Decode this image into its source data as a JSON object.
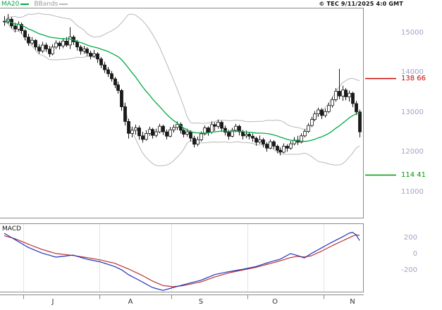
{
  "legend": {
    "ma20": "MA20",
    "bbands": "BBands"
  },
  "copyright": "© TEC 9/11/2025 4:0 GMT",
  "colors": {
    "ma20": "#00aa44",
    "bbands": "#b8b8b8",
    "bbands_text": "#9a9a9a",
    "candle": "#1a1a1a",
    "macd_line": "#2233bb",
    "macd_signal": "#bb3333",
    "axis_text": "#9fa3c8",
    "frame": "#8a8a8a"
  },
  "chart_data": {
    "type": "candlestick",
    "title": "",
    "x_axis": {
      "month_labels": [
        "J",
        "A",
        "S",
        "O",
        "N"
      ],
      "month_start_indices": [
        6,
        28,
        49,
        71,
        93
      ]
    },
    "price_axis": {
      "tick_values": [
        15000,
        14000,
        13000,
        12000,
        11000
      ],
      "visible_range_approx": [
        10400,
        15600
      ]
    },
    "overlays": [
      {
        "name": "MA20",
        "type": "sma",
        "period": 20,
        "source": "close"
      },
      {
        "name": "BBands",
        "type": "bollinger",
        "period": 20,
        "stddev": 2
      }
    ],
    "levels": [
      {
        "label": "138 66",
        "value": 13866,
        "role": "resistance",
        "color": "#cc0000"
      },
      {
        "label": "114 41",
        "value": 11441,
        "role": "support",
        "color": "#009900"
      }
    ],
    "candles_ohlc": [
      [
        15300,
        15430,
        15180,
        15280
      ],
      [
        15280,
        15480,
        15230,
        15350
      ],
      [
        15350,
        15400,
        15120,
        15180
      ],
      [
        15180,
        15260,
        15020,
        15100
      ],
      [
        15100,
        15300,
        15050,
        15220
      ],
      [
        15220,
        15270,
        14980,
        15060
      ],
      [
        15060,
        15100,
        14820,
        14900
      ],
      [
        14900,
        14980,
        14680,
        14750
      ],
      [
        14750,
        14900,
        14700,
        14820
      ],
      [
        14820,
        14850,
        14580,
        14650
      ],
      [
        14650,
        14720,
        14480,
        14550
      ],
      [
        14550,
        14780,
        14500,
        14700
      ],
      [
        14700,
        14760,
        14530,
        14600
      ],
      [
        14600,
        14680,
        14400,
        14480
      ],
      [
        14480,
        14720,
        14440,
        14650
      ],
      [
        14650,
        14820,
        14600,
        14750
      ],
      [
        14750,
        14800,
        14590,
        14680
      ],
      [
        14680,
        14870,
        14620,
        14800
      ],
      [
        14800,
        14900,
        14650,
        14700
      ],
      [
        14700,
        15150,
        14600,
        14900
      ],
      [
        14900,
        14950,
        14700,
        14780
      ],
      [
        14780,
        14830,
        14560,
        14650
      ],
      [
        14650,
        14700,
        14460,
        14550
      ],
      [
        14550,
        14680,
        14480,
        14600
      ],
      [
        14600,
        14640,
        14420,
        14500
      ],
      [
        14500,
        14560,
        14340,
        14420
      ],
      [
        14420,
        14580,
        14380,
        14480
      ],
      [
        14480,
        14520,
        14250,
        14350
      ],
      [
        14350,
        14400,
        14120,
        14200
      ],
      [
        14200,
        14280,
        14000,
        14080
      ],
      [
        14080,
        14150,
        13900,
        13980
      ],
      [
        13980,
        14050,
        13780,
        13850
      ],
      [
        13850,
        13900,
        13620,
        13700
      ],
      [
        13700,
        13780,
        13480,
        13560
      ],
      [
        13560,
        13600,
        13050,
        13150
      ],
      [
        13150,
        13250,
        12680,
        12780
      ],
      [
        12780,
        12850,
        12350,
        12480
      ],
      [
        12480,
        12650,
        12380,
        12560
      ],
      [
        12560,
        12700,
        12450,
        12620
      ],
      [
        12620,
        12680,
        12320,
        12420
      ],
      [
        12420,
        12520,
        12250,
        12330
      ],
      [
        12330,
        12560,
        12300,
        12480
      ],
      [
        12480,
        12650,
        12420,
        12580
      ],
      [
        12580,
        12620,
        12350,
        12430
      ],
      [
        12430,
        12600,
        12380,
        12520
      ],
      [
        12520,
        12720,
        12480,
        12660
      ],
      [
        12660,
        12700,
        12440,
        12520
      ],
      [
        12520,
        12580,
        12330,
        12410
      ],
      [
        12410,
        12640,
        12380,
        12570
      ],
      [
        12570,
        12700,
        12500,
        12630
      ],
      [
        12630,
        12780,
        12560,
        12710
      ],
      [
        12710,
        12760,
        12480,
        12560
      ],
      [
        12560,
        12620,
        12380,
        12460
      ],
      [
        12460,
        12600,
        12400,
        12520
      ],
      [
        12520,
        12560,
        12280,
        12360
      ],
      [
        12360,
        12420,
        12130,
        12210
      ],
      [
        12210,
        12400,
        12160,
        12320
      ],
      [
        12320,
        12530,
        12280,
        12470
      ],
      [
        12470,
        12680,
        12430,
        12620
      ],
      [
        12620,
        12660,
        12420,
        12510
      ],
      [
        12510,
        12780,
        12470,
        12700
      ],
      [
        12700,
        12760,
        12540,
        12660
      ],
      [
        12660,
        12830,
        12600,
        12760
      ],
      [
        12760,
        12800,
        12520,
        12610
      ],
      [
        12610,
        12680,
        12430,
        12510
      ],
      [
        12510,
        12570,
        12320,
        12410
      ],
      [
        12410,
        12620,
        12380,
        12560
      ],
      [
        12560,
        12720,
        12510,
        12660
      ],
      [
        12660,
        12700,
        12430,
        12520
      ],
      [
        12520,
        12570,
        12330,
        12420
      ],
      [
        12420,
        12550,
        12360,
        12460
      ],
      [
        12460,
        12510,
        12330,
        12410
      ],
      [
        12410,
        12480,
        12270,
        12360
      ],
      [
        12360,
        12400,
        12170,
        12260
      ],
      [
        12260,
        12430,
        12220,
        12320
      ],
      [
        12320,
        12370,
        12130,
        12210
      ],
      [
        12210,
        12260,
        12020,
        12110
      ],
      [
        12110,
        12330,
        12080,
        12270
      ],
      [
        12270,
        12310,
        12090,
        12160
      ],
      [
        12160,
        12200,
        11980,
        12060
      ],
      [
        12060,
        12130,
        11930,
        12010
      ],
      [
        12010,
        12230,
        11980,
        12160
      ],
      [
        12160,
        12210,
        12020,
        12110
      ],
      [
        12110,
        12290,
        12070,
        12220
      ],
      [
        12220,
        12390,
        12180,
        12310
      ],
      [
        12310,
        12420,
        12190,
        12260
      ],
      [
        12260,
        12480,
        12230,
        12420
      ],
      [
        12420,
        12590,
        12380,
        12530
      ],
      [
        12530,
        12740,
        12490,
        12680
      ],
      [
        12680,
        12900,
        12640,
        12830
      ],
      [
        12830,
        13040,
        12790,
        12970
      ],
      [
        12970,
        13130,
        12900,
        13070
      ],
      [
        13070,
        13120,
        12840,
        12930
      ],
      [
        12930,
        13100,
        12880,
        13030
      ],
      [
        13030,
        13250,
        12990,
        13180
      ],
      [
        13180,
        13400,
        13130,
        13330
      ],
      [
        13330,
        13620,
        13280,
        13540
      ],
      [
        13540,
        14100,
        13340,
        13420
      ],
      [
        13420,
        13680,
        13300,
        13570
      ],
      [
        13570,
        13620,
        13310,
        13400
      ],
      [
        13400,
        13560,
        13280,
        13490
      ],
      [
        13490,
        13530,
        13140,
        13230
      ],
      [
        13230,
        13300,
        12940,
        13020
      ],
      [
        13020,
        13080,
        12380,
        12520
      ]
    ],
    "macd_panel": {
      "label": "MACD",
      "tick_values": [
        200,
        0,
        -200
      ],
      "macd_line_points": [
        [
          0,
          260
        ],
        [
          3,
          185
        ],
        [
          7,
          85
        ],
        [
          11,
          15
        ],
        [
          15,
          -35
        ],
        [
          18,
          -20
        ],
        [
          20,
          -10
        ],
        [
          22,
          -35
        ],
        [
          24,
          -60
        ],
        [
          28,
          -95
        ],
        [
          32,
          -150
        ],
        [
          34,
          -190
        ],
        [
          36,
          -250
        ],
        [
          38,
          -295
        ],
        [
          40,
          -340
        ],
        [
          43,
          -410
        ],
        [
          46,
          -445
        ],
        [
          49,
          -410
        ],
        [
          52,
          -375
        ],
        [
          57,
          -320
        ],
        [
          61,
          -250
        ],
        [
          65,
          -215
        ],
        [
          69,
          -185
        ],
        [
          73,
          -150
        ],
        [
          77,
          -95
        ],
        [
          80,
          -60
        ],
        [
          83,
          10
        ],
        [
          85,
          -15
        ],
        [
          87,
          -45
        ],
        [
          89,
          10
        ],
        [
          92,
          80
        ],
        [
          95,
          150
        ],
        [
          98,
          215
        ],
        [
          100,
          262
        ],
        [
          101,
          270
        ],
        [
          102,
          240
        ],
        [
          103,
          170
        ]
      ],
      "signal_line_points": [
        [
          0,
          230
        ],
        [
          3,
          195
        ],
        [
          7,
          125
        ],
        [
          11,
          60
        ],
        [
          15,
          10
        ],
        [
          20,
          -15
        ],
        [
          24,
          -40
        ],
        [
          28,
          -70
        ],
        [
          32,
          -110
        ],
        [
          36,
          -180
        ],
        [
          40,
          -260
        ],
        [
          43,
          -330
        ],
        [
          46,
          -385
        ],
        [
          49,
          -400
        ],
        [
          52,
          -385
        ],
        [
          57,
          -340
        ],
        [
          61,
          -280
        ],
        [
          65,
          -230
        ],
        [
          69,
          -195
        ],
        [
          73,
          -160
        ],
        [
          77,
          -115
        ],
        [
          80,
          -80
        ],
        [
          83,
          -40
        ],
        [
          85,
          -25
        ],
        [
          87,
          -32
        ],
        [
          89,
          -18
        ],
        [
          92,
          40
        ],
        [
          95,
          105
        ],
        [
          98,
          165
        ],
        [
          100,
          205
        ],
        [
          101,
          225
        ],
        [
          102,
          240
        ],
        [
          103,
          235
        ]
      ]
    }
  }
}
